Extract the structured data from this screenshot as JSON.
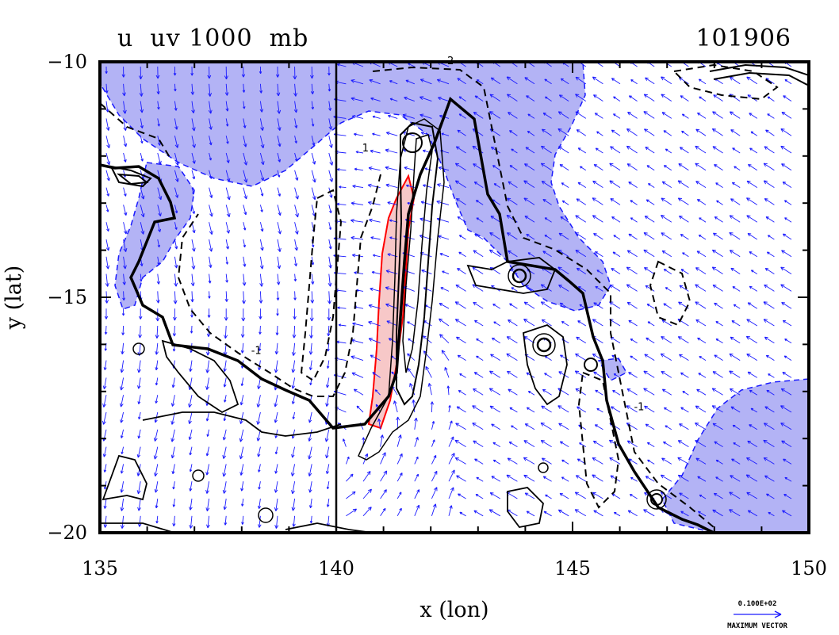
{
  "chart_data": {
    "type": "contour-vector-map",
    "title_left": "u  uv 1000  mb",
    "title_right": "101906",
    "xlabel": "x (lon)",
    "ylabel": "y (lat)",
    "xlim": [
      135,
      150
    ],
    "ylim": [
      -20,
      -10
    ],
    "x_ticks": [
      135,
      140,
      145,
      150
    ],
    "y_ticks": [
      -10,
      -15,
      -20
    ],
    "x_tick_labels": [
      "135",
      "140",
      "145",
      "150"
    ],
    "y_tick_labels": [
      "−10",
      "−15",
      "−20"
    ],
    "contour_labels": [
      {
        "text": "2",
        "x": 142.35,
        "y": -10.05
      },
      {
        "text": "1",
        "x": 140.55,
        "y": -11.9
      },
      {
        "text": "-1",
        "x": 138.2,
        "y": -16.2
      },
      {
        "text": "-1",
        "x": 146.3,
        "y": -17.4
      }
    ],
    "vector_legend": {
      "value": "0.100E+02",
      "label": "MAXIMUM VECTOR"
    },
    "colors": {
      "shade_blue": "#b3b3f5",
      "shade_blue_edge": "#1a1aff",
      "shade_red": "#f7c8c8",
      "red_line": "#ff0000",
      "vector": "#1a1aff",
      "contour": "#000000"
    }
  }
}
